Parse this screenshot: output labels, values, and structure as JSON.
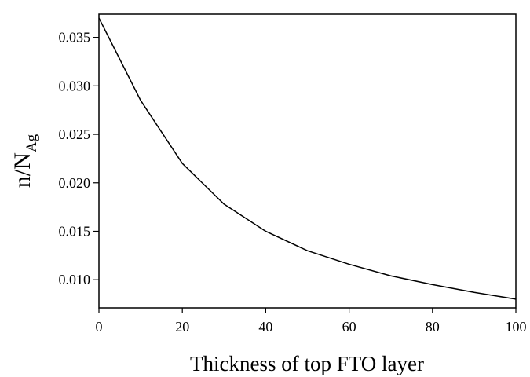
{
  "chart_data": {
    "type": "line",
    "xlabel": "Thickness of top FTO layer",
    "ylabel": "n/N",
    "ylabel_sub": "Ag",
    "x": [
      0,
      10,
      20,
      30,
      40,
      50,
      60,
      70,
      80,
      90,
      100
    ],
    "series": [
      {
        "color": "#000000",
        "values": [
          0.037,
          0.0285,
          0.022,
          0.0178,
          0.015,
          0.013,
          0.0116,
          0.0104,
          0.0095,
          0.0087,
          0.008
        ]
      }
    ],
    "xlim": [
      0,
      100
    ],
    "xticks": [
      0,
      20,
      40,
      60,
      80,
      100
    ],
    "ylim": [
      0.0071,
      0.0374
    ],
    "yticks": [
      {
        "value": 0.01,
        "label": "0.010"
      },
      {
        "value": 0.015,
        "label": "0.015"
      },
      {
        "value": 0.02,
        "label": "0.020"
      },
      {
        "value": 0.025,
        "label": "0.025"
      },
      {
        "value": 0.03,
        "label": "0.030"
      },
      {
        "value": 0.035,
        "label": "0.035"
      }
    ],
    "grid": false
  }
}
